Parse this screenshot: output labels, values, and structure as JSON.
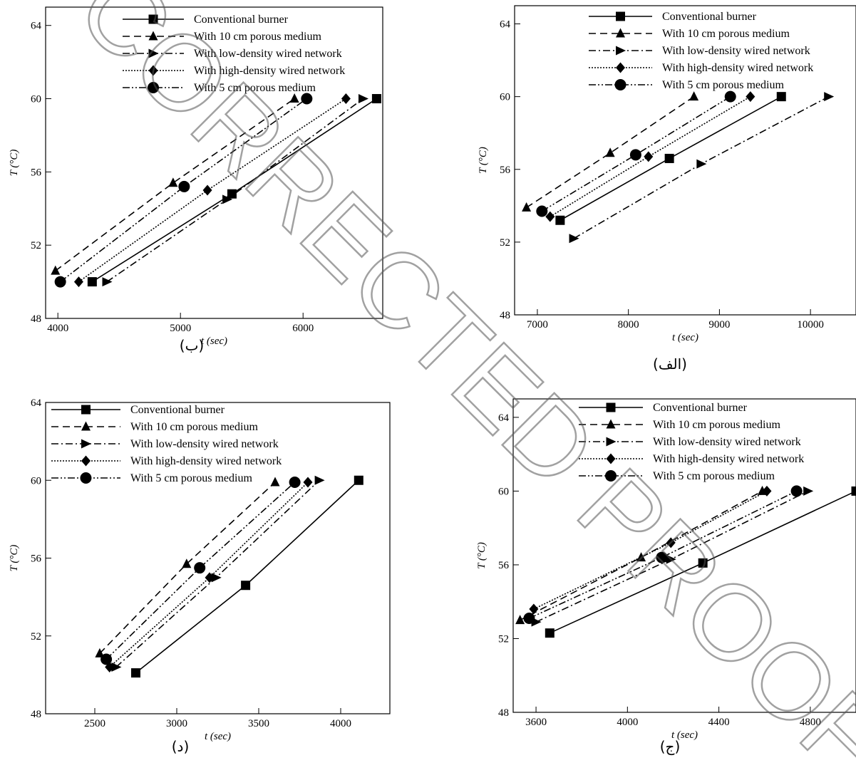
{
  "legend_labels": [
    "Conventional burner",
    "With 10 cm porous medium",
    "With low-density wired network",
    "With high-density wired network",
    "With 5 cm porous medium"
  ],
  "series_style": [
    {
      "marker": "square",
      "dash": "",
      "color": "#000000"
    },
    {
      "marker": "triangle",
      "dash": "10,6",
      "color": "#000000"
    },
    {
      "marker": "right-triangle",
      "dash": "10,4,2,4",
      "color": "#000000"
    },
    {
      "marker": "diamond",
      "dash": "2,2",
      "color": "#000000"
    },
    {
      "marker": "circle",
      "dash": "10,3,2,3,2,3",
      "color": "#000000"
    }
  ],
  "watermark": {
    "text": "CORRECTED PROOF",
    "color": "#555555"
  },
  "chart_data": [
    {
      "type": "line",
      "caption": "(ب)",
      "xlabel": "t (sec)",
      "ylabel": "T (°C)",
      "xlim": [
        3900,
        6650
      ],
      "ylim": [
        48,
        65
      ],
      "xticks": [
        4000,
        5000,
        6000
      ],
      "yticks": [
        48,
        52,
        56,
        60,
        64
      ],
      "grid": false,
      "legend_position": "top-right",
      "series": [
        {
          "x": [
            4280,
            5420,
            6600
          ],
          "y": [
            50.0,
            54.8,
            60.0
          ]
        },
        {
          "x": [
            3980,
            4940,
            5930
          ],
          "y": [
            50.6,
            55.4,
            60.0
          ]
        },
        {
          "x": [
            4400,
            5380,
            6490
          ],
          "y": [
            50.0,
            54.5,
            60.0
          ]
        },
        {
          "x": [
            4170,
            5220,
            6350
          ],
          "y": [
            50.0,
            55.0,
            60.0
          ]
        },
        {
          "x": [
            4020,
            5030,
            6030
          ],
          "y": [
            50.0,
            55.2,
            60.0
          ]
        }
      ]
    },
    {
      "type": "line",
      "caption": "(الف)",
      "xlabel": "t (sec)",
      "ylabel": "T (°C)",
      "xlim": [
        6750,
        10500
      ],
      "ylim": [
        48,
        65
      ],
      "xticks": [
        7000,
        8000,
        9000,
        10000
      ],
      "yticks": [
        48,
        52,
        56,
        60,
        64
      ],
      "grid": false,
      "legend_position": "top-right",
      "series": [
        {
          "x": [
            7250,
            8450,
            9680
          ],
          "y": [
            53.2,
            56.6,
            60.0
          ]
        },
        {
          "x": [
            6880,
            7800,
            8720
          ],
          "y": [
            53.9,
            56.9,
            60.0
          ]
        },
        {
          "x": [
            7400,
            8800,
            10200
          ],
          "y": [
            52.2,
            56.3,
            60.0
          ]
        },
        {
          "x": [
            7140,
            8220,
            9340
          ],
          "y": [
            53.4,
            56.7,
            60.0
          ]
        },
        {
          "x": [
            7050,
            8080,
            9120
          ],
          "y": [
            53.7,
            56.8,
            60.0
          ]
        }
      ]
    },
    {
      "type": "line",
      "caption": "(د)",
      "xlabel": "t (sec)",
      "ylabel": "T (°C)",
      "xlim": [
        2200,
        4300
      ],
      "ylim": [
        48,
        64
      ],
      "xticks": [
        2500,
        3000,
        3500,
        4000
      ],
      "yticks": [
        48,
        52,
        56,
        60,
        64
      ],
      "grid": false,
      "legend_position": "top-left",
      "series": [
        {
          "x": [
            2750,
            3420,
            4110
          ],
          "y": [
            50.1,
            54.6,
            60.0
          ]
        },
        {
          "x": [
            2530,
            3060,
            3600
          ],
          "y": [
            51.1,
            55.7,
            59.9
          ]
        },
        {
          "x": [
            2630,
            3240,
            3870
          ],
          "y": [
            50.4,
            55.0,
            60.0
          ]
        },
        {
          "x": [
            2590,
            3200,
            3800
          ],
          "y": [
            50.4,
            55.0,
            59.9
          ]
        },
        {
          "x": [
            2570,
            3140,
            3720
          ],
          "y": [
            50.8,
            55.5,
            59.9
          ]
        }
      ]
    },
    {
      "type": "line",
      "caption": "(ج)",
      "xlabel": "t (sec)",
      "ylabel": "T (°C)",
      "xlim": [
        3500,
        5000
      ],
      "ylim": [
        48,
        65
      ],
      "xticks": [
        3600,
        4000,
        4400,
        4800
      ],
      "yticks": [
        48,
        52,
        56,
        60,
        64
      ],
      "grid": false,
      "legend_position": "top-right",
      "series": [
        {
          "x": [
            3660,
            4330,
            5000
          ],
          "y": [
            52.3,
            56.1,
            60.0
          ]
        },
        {
          "x": [
            3530,
            4060,
            4590
          ],
          "y": [
            53.0,
            56.4,
            60.0
          ]
        },
        {
          "x": [
            3600,
            4190,
            4790
          ],
          "y": [
            52.9,
            56.3,
            60.0
          ]
        },
        {
          "x": [
            3590,
            4190,
            4610
          ],
          "y": [
            53.6,
            57.2,
            60.0
          ]
        },
        {
          "x": [
            3570,
            4150,
            4740
          ],
          "y": [
            53.1,
            56.4,
            60.0
          ]
        }
      ]
    }
  ]
}
